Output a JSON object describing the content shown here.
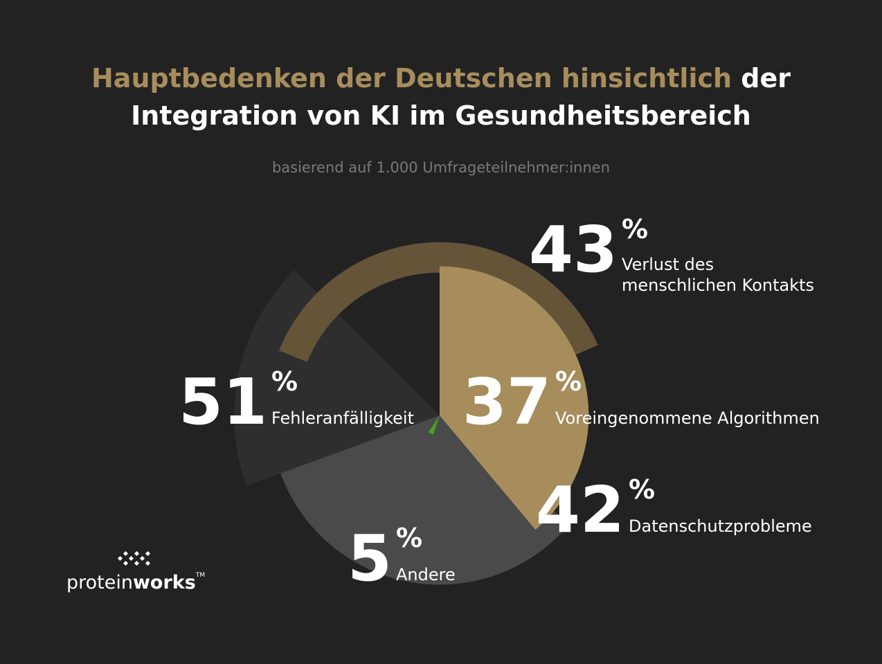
{
  "title": {
    "accent": "Hauptbedenken der Deutschen hinsichtlich",
    "rest_line1": "der",
    "line2": "Integration von KI im Gesundheitsbereich"
  },
  "subtitle": "basierend auf 1.000 Umfrageteilnehmer:innen",
  "chart_data": {
    "type": "pie",
    "series": [
      {
        "value": 51,
        "label": "Fehleranfälligkeit",
        "color": "#2e2e2e"
      },
      {
        "value": 43,
        "label": "Verlust des menschlichen Kontakts",
        "color": "#665439"
      },
      {
        "value": 37,
        "label": "Voreingenommene Algorithmen",
        "color": "#a88d5c"
      },
      {
        "value": 42,
        "label": "Datenschutzprobleme",
        "color": "#4a4a4a"
      },
      {
        "value": 5,
        "label": "Andere",
        "color": "#47a023"
      }
    ],
    "unit": "%"
  },
  "logo": {
    "light": "protein",
    "bold": "works",
    "mark": "TM"
  },
  "colors": {
    "background": "#222222",
    "accent": "#a88d5c"
  }
}
